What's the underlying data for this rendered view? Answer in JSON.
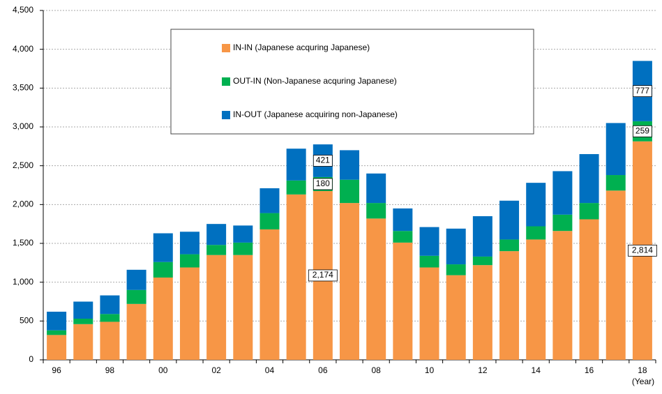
{
  "chart_data": {
    "type": "stacked_bar",
    "x_label": "(Year)",
    "categories": [
      "96",
      null,
      "98",
      null,
      "00",
      null,
      "02",
      null,
      "04",
      null,
      "06",
      null,
      "08",
      null,
      "10",
      null,
      "12",
      null,
      "14",
      null,
      "16",
      null,
      "18"
    ],
    "series": [
      {
        "name": "IN-IN (Japanese acquring Japanese)",
        "color": "#f79646",
        "values": [
          320,
          460,
          490,
          720,
          1060,
          1190,
          1350,
          1350,
          1680,
          2130,
          2174,
          2020,
          1820,
          1510,
          1190,
          1090,
          1220,
          1400,
          1550,
          1660,
          1810,
          2180,
          2814
        ],
        "value_labels": [
          null,
          null,
          null,
          null,
          null,
          null,
          null,
          null,
          null,
          null,
          "2,174",
          null,
          null,
          null,
          null,
          null,
          null,
          null,
          null,
          null,
          null,
          null,
          "2,814"
        ]
      },
      {
        "name": "OUT-IN (Non-Japanese acquring Japanese)",
        "color": "#00b050",
        "values": [
          60,
          70,
          100,
          180,
          200,
          170,
          130,
          160,
          210,
          180,
          180,
          300,
          200,
          150,
          150,
          140,
          110,
          150,
          170,
          210,
          210,
          200,
          259
        ],
        "value_labels": [
          null,
          null,
          null,
          null,
          null,
          null,
          null,
          null,
          null,
          null,
          "180",
          null,
          null,
          null,
          null,
          null,
          null,
          null,
          null,
          null,
          null,
          null,
          "259"
        ]
      },
      {
        "name": "IN-OUT (Japanese acquiring non-Japanese)",
        "color": "#0070c0",
        "values": [
          240,
          220,
          240,
          260,
          370,
          290,
          270,
          220,
          320,
          410,
          421,
          380,
          380,
          290,
          370,
          460,
          520,
          500,
          560,
          560,
          630,
          670,
          777
        ],
        "value_labels": [
          null,
          null,
          null,
          null,
          null,
          null,
          null,
          null,
          null,
          null,
          "421",
          null,
          null,
          null,
          null,
          null,
          null,
          null,
          null,
          null,
          null,
          null,
          "777"
        ]
      }
    ],
    "ylim": [
      0,
      4500
    ],
    "yticks": [
      0,
      500,
      {
        "value": 1000,
        "label": "1,000"
      },
      {
        "value": 1500,
        "label": "1,500"
      },
      {
        "value": 2000,
        "label": "2,000"
      },
      {
        "value": 2500,
        "label": "2,500"
      },
      {
        "value": 3000,
        "label": "3,000"
      },
      {
        "value": 3500,
        "label": "3,500"
      },
      {
        "value": 4000,
        "label": "4,000"
      },
      {
        "value": 4500,
        "label": "4,500"
      }
    ],
    "grid": true
  }
}
